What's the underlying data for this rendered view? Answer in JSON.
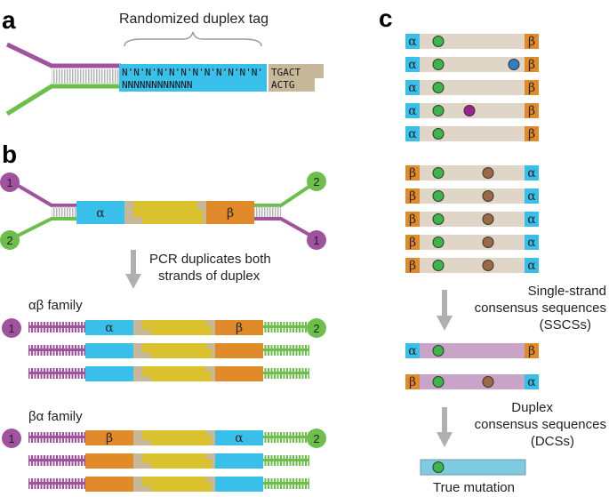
{
  "panels": {
    "a": "a",
    "b": "b",
    "c": "c"
  },
  "panel_a": {
    "tag_label": "Randomized duplex tag",
    "tag_top_seq": "N'N'N'N'N'N'N'N'N'N'N'N'",
    "tag_bottom_seq": "NNNNNNNNNNNN",
    "adapter_top_seq": "TGACT",
    "adapter_bottom_seq": "ACTG"
  },
  "panel_b": {
    "alpha": "α",
    "beta": "β",
    "num1": "1",
    "num2": "2",
    "pcr_line1": "PCR duplicates both",
    "pcr_line2": "strands of duplex",
    "family_ab": "αβ family",
    "family_ba": "βα family"
  },
  "panel_c": {
    "alpha": "α",
    "beta": "β",
    "sscs_line1": "Single-strand",
    "sscs_line2": "consensus sequences",
    "sscs_line3": "(SSCSs)",
    "dcs_line1": "Duplex",
    "dcs_line2": "consensus sequences",
    "dcs_line3": "(DCSs)",
    "true_mutation": "True mutation"
  },
  "colors": {
    "purple": "#a0529e",
    "green": "#6cbf4b",
    "cyan": "#39c0ea",
    "orange": "#e08a2a",
    "tan": "#c8b89a",
    "yellow": "#d9c22e",
    "strand_bg": "#e0d6c8",
    "sscs_purple": "#c9a4c9",
    "dcs_blue": "#7ecbdf",
    "dot_green": "#3cb54a",
    "dot_brown": "#9b6a45",
    "dot_blue": "#2f7fc1",
    "dot_purple": "#9b2390"
  }
}
